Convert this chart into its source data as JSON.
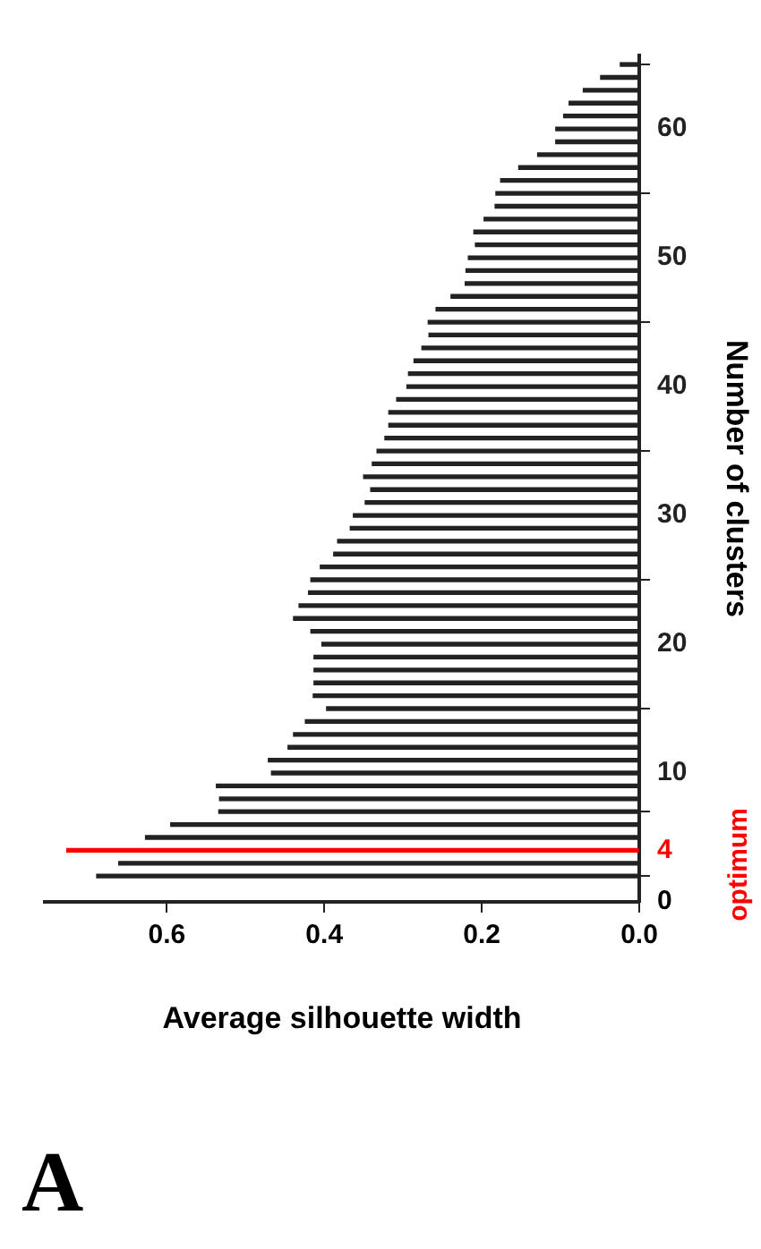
{
  "chart_data": {
    "type": "bar",
    "orientation": "horizontal",
    "xlabel": "Average silhouette width",
    "ylabel": "Number of clusters",
    "x": [
      2,
      3,
      4,
      5,
      6,
      7,
      8,
      9,
      10,
      11,
      12,
      13,
      14,
      15,
      16,
      17,
      18,
      19,
      20,
      21,
      22,
      23,
      24,
      25,
      26,
      27,
      28,
      29,
      30,
      31,
      32,
      33,
      34,
      35,
      36,
      37,
      38,
      39,
      40,
      41,
      42,
      43,
      44,
      45,
      46,
      47,
      48,
      49,
      50,
      51,
      52,
      53,
      54,
      55,
      56,
      57,
      58,
      59,
      60,
      61,
      62,
      63,
      64,
      65
    ],
    "values": [
      0.689,
      0.661,
      0.727,
      0.627,
      0.595,
      0.534,
      0.533,
      0.537,
      0.467,
      0.471,
      0.446,
      0.439,
      0.424,
      0.397,
      0.414,
      0.413,
      0.413,
      0.413,
      0.403,
      0.417,
      0.439,
      0.432,
      0.42,
      0.417,
      0.405,
      0.388,
      0.383,
      0.367,
      0.363,
      0.348,
      0.341,
      0.35,
      0.339,
      0.333,
      0.323,
      0.318,
      0.318,
      0.308,
      0.295,
      0.293,
      0.286,
      0.276,
      0.267,
      0.268,
      0.258,
      0.239,
      0.221,
      0.22,
      0.217,
      0.208,
      0.21,
      0.197,
      0.183,
      0.182,
      0.176,
      0.153,
      0.129,
      0.106,
      0.106,
      0.096,
      0.089,
      0.071,
      0.049,
      0.024
    ],
    "colors": [
      "#222222",
      "#222222",
      "#ff0000",
      "#222222",
      "#222222",
      "#222222",
      "#222222",
      "#222222",
      "#222222",
      "#222222",
      "#222222",
      "#222222",
      "#222222",
      "#222222",
      "#222222",
      "#222222",
      "#222222",
      "#222222",
      "#222222",
      "#222222",
      "#222222",
      "#222222",
      "#222222",
      "#222222",
      "#222222",
      "#222222",
      "#222222",
      "#222222",
      "#222222",
      "#222222",
      "#222222",
      "#222222",
      "#222222",
      "#222222",
      "#222222",
      "#222222",
      "#222222",
      "#222222",
      "#222222",
      "#222222",
      "#222222",
      "#222222",
      "#222222",
      "#222222",
      "#222222",
      "#222222",
      "#222222",
      "#222222",
      "#222222",
      "#222222",
      "#222222",
      "#222222",
      "#222222",
      "#222222",
      "#222222",
      "#222222",
      "#222222",
      "#222222",
      "#222222",
      "#222222",
      "#222222",
      "#222222",
      "#222222",
      "#222222"
    ],
    "xlim": [
      0.755,
      0
    ],
    "xticks": [
      {
        "value": 0.6,
        "label": "0.6"
      },
      {
        "value": 0.4,
        "label": "0.4"
      },
      {
        "value": 0.2,
        "label": "0.2"
      },
      {
        "value": 0,
        "label": "0.0"
      }
    ],
    "ylim": [
      0,
      65.7
    ],
    "yticks": [
      0,
      4,
      10,
      20,
      30,
      40,
      50,
      60
    ],
    "annotations": [
      "optimum",
      "A"
    ]
  }
}
